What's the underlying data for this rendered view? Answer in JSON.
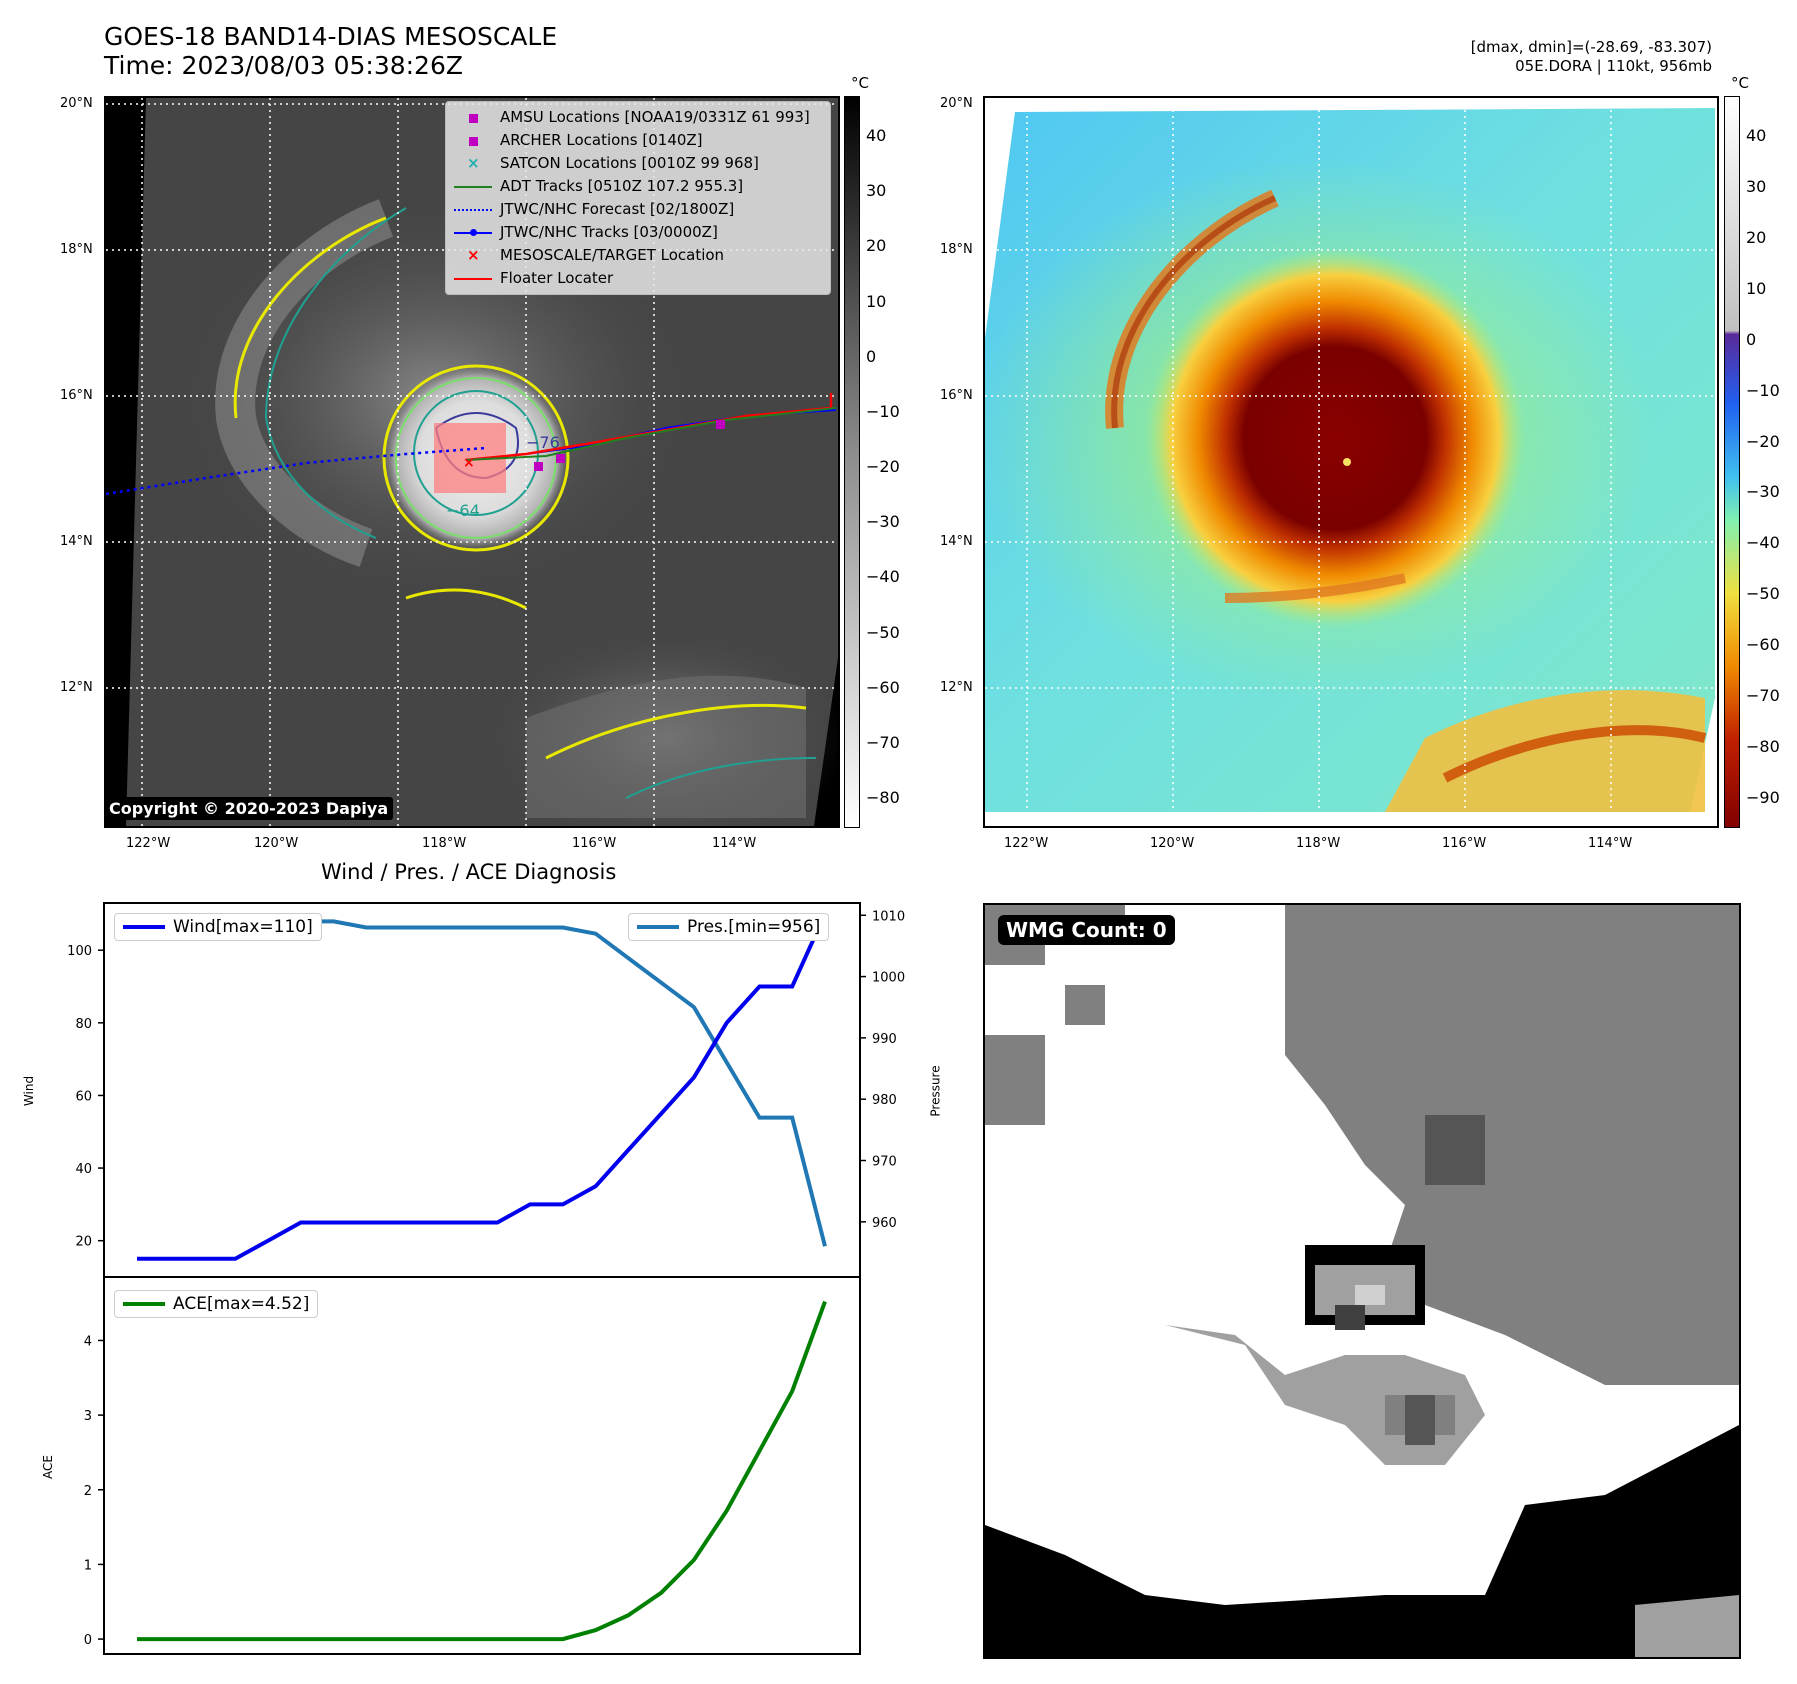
{
  "header": {
    "title_line1": "GOES-18 BAND14-DIAS MESOSCALE",
    "title_line2": "Time: 2023/08/03 05:38:26Z",
    "info_line1": "[dmax, dmin]=(-28.69, -83.307)",
    "info_line2": "05E.DORA | 110kt, 956mb"
  },
  "map_left": {
    "lat_labels": [
      "20°N",
      "18°N",
      "16°N",
      "14°N",
      "12°N"
    ],
    "lon_labels": [
      "122°W",
      "120°W",
      "118°W",
      "116°W",
      "114°W"
    ],
    "colorbar_unit": "°C",
    "colorbar_ticks": [
      "40",
      "30",
      "20",
      "10",
      "0",
      "−10",
      "−20",
      "−30",
      "−40",
      "−50",
      "−60",
      "−70",
      "−80"
    ],
    "contour_labels": [
      "−64",
      "−76"
    ],
    "copyright": "Copyright © 2020-2023 Dapiya",
    "legend": [
      {
        "label": "AMSU Locations [NOAA19/0331Z 61 993]",
        "color": "#c000c0",
        "style": "square"
      },
      {
        "label": "ARCHER Locations [0140Z]",
        "color": "#c000c0",
        "style": "square"
      },
      {
        "label": "SATCON Locations [0010Z 99 968]",
        "color": "#20b0b0",
        "style": "x"
      },
      {
        "label": "ADT Tracks [0510Z 107.2 955.3]",
        "color": "#208020",
        "style": "line"
      },
      {
        "label": "JTWC/NHC Forecast [02/1800Z]",
        "color": "#0000ff",
        "style": "dotted"
      },
      {
        "label": "JTWC/NHC Tracks [03/0000Z]",
        "color": "#0000ff",
        "style": "line-dot"
      },
      {
        "label": "MESOSCALE/TARGET Location",
        "color": "#ff0000",
        "style": "x"
      },
      {
        "label": "Floater Locater",
        "color": "#ff0000",
        "style": "line"
      }
    ]
  },
  "map_right": {
    "lat_labels": [
      "20°N",
      "18°N",
      "16°N",
      "14°N",
      "12°N"
    ],
    "lon_labels": [
      "122°W",
      "120°W",
      "118°W",
      "116°W",
      "114°W"
    ],
    "colorbar_unit": "°C",
    "colorbar_ticks": [
      "40",
      "30",
      "20",
      "10",
      "0",
      "−10",
      "−20",
      "−30",
      "−40",
      "−50",
      "−60",
      "−70",
      "−80",
      "−90"
    ]
  },
  "diag_title": "Wind / Pres. / ACE Diagnosis",
  "wmg_label": "WMG Count: 0",
  "chart_data": [
    {
      "type": "line",
      "title": "Wind / Pres. / ACE Diagnosis",
      "ylabel": "Wind",
      "y2label": "Pressure",
      "ylim": [
        10,
        113
      ],
      "y2lim": [
        951,
        1012
      ],
      "yticks": [
        20,
        40,
        60,
        80,
        100
      ],
      "y2ticks": [
        960,
        970,
        980,
        990,
        1000,
        1010
      ],
      "x": [
        0,
        1,
        2,
        3,
        4,
        5,
        6,
        7,
        8,
        9,
        10,
        11,
        12,
        13,
        14,
        15,
        16,
        17,
        18,
        19,
        20,
        21
      ],
      "series": [
        {
          "name": "Wind[max=110]",
          "color": "#0000ee",
          "axis": "left",
          "values": [
            15,
            15,
            15,
            15,
            20,
            25,
            25,
            25,
            25,
            25,
            25,
            25,
            30,
            30,
            35,
            45,
            55,
            65,
            80,
            90,
            90,
            110
          ]
        },
        {
          "name": "Pres.[min=956]",
          "color": "#1f77b4",
          "axis": "right",
          "values": [
            1010,
            1010,
            1010,
            1010,
            1009,
            1009,
            1009,
            1008,
            1008,
            1008,
            1008,
            1008,
            1008,
            1008,
            1007,
            1003,
            999,
            995,
            986,
            977,
            977,
            956
          ]
        }
      ]
    },
    {
      "type": "line",
      "ylabel": "ACE",
      "ylim": [
        -0.2,
        4.85
      ],
      "yticks": [
        0,
        1,
        2,
        3,
        4
      ],
      "x": [
        0,
        1,
        2,
        3,
        4,
        5,
        6,
        7,
        8,
        9,
        10,
        11,
        12,
        13,
        14,
        15,
        16,
        17,
        18,
        19,
        20,
        21
      ],
      "series": [
        {
          "name": "ACE[max=4.52]",
          "color": "#008000",
          "axis": "left",
          "values": [
            0,
            0,
            0,
            0,
            0,
            0,
            0,
            0,
            0,
            0,
            0,
            0,
            0,
            0,
            0.12,
            0.32,
            0.62,
            1.06,
            1.72,
            2.52,
            3.32,
            4.52
          ]
        }
      ]
    }
  ]
}
